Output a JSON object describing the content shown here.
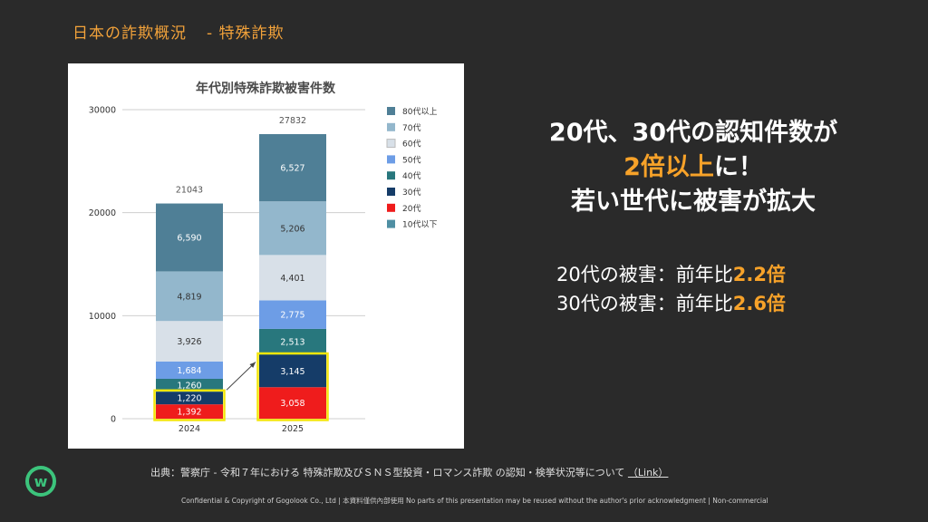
{
  "header": {
    "title": "日本の詐欺概況",
    "subtitle": "- 特殊詐欺"
  },
  "headline": {
    "line1": "20代、30代の認知件数が",
    "line2_strong": "2倍以上",
    "line2_rest": "に！",
    "line3": "若い世代に被害が拡大"
  },
  "stats": [
    {
      "label": "20代の被害：前年比",
      "value": "2.2倍"
    },
    {
      "label": "30代の被害：前年比",
      "value": "2.6倍"
    }
  ],
  "source": {
    "text": "出典：警察庁 - 令和７年における 特殊詐欺及びＳＮＳ型投資・ロマンス詐欺 の認知・検挙状況等について",
    "link": "（Link）"
  },
  "footer": "Confidential & Copyright of Gogolook Co., Ltd | 本資料僅供內部使用 No parts of this presentation may be reused without the author's prior acknowledgment | Non-commercial",
  "logo": {
    "icon": "gogolook-w-logo",
    "color": "#3cc47c"
  },
  "colors": {
    "accent": "#f7a229",
    "highlight": "#f4e60a"
  },
  "chart_data": {
    "type": "bar",
    "stacked": true,
    "title": "年代別特殊詐欺被害件数",
    "categories": [
      "2024",
      "2025"
    ],
    "totals": [
      "21043",
      "27832"
    ],
    "ylim": [
      0,
      30000
    ],
    "yticks": [
      "0",
      "10000",
      "20000",
      "30000"
    ],
    "grid": true,
    "legend_position": "right",
    "series": [
      {
        "name": "10代以下",
        "color": "#4f8fa3",
        "values": [
          0,
          0
        ],
        "labels": [
          "",
          ""
        ]
      },
      {
        "name": "20代",
        "color": "#ef1c1c",
        "values": [
          1392,
          3058
        ],
        "labels": [
          "1,392",
          "3,058"
        ]
      },
      {
        "name": "30代",
        "color": "#153c68",
        "values": [
          1220,
          3145
        ],
        "labels": [
          "1,220",
          "3,145"
        ]
      },
      {
        "name": "40代",
        "color": "#28777d",
        "values": [
          1260,
          2513
        ],
        "labels": [
          "1,260",
          "2,513"
        ]
      },
      {
        "name": "50代",
        "color": "#6d9de6",
        "values": [
          1684,
          2775
        ],
        "labels": [
          "1,684",
          "2,775"
        ]
      },
      {
        "name": "60代",
        "color": "#d8e0e8",
        "values": [
          3926,
          4401
        ],
        "labels": [
          "3,926",
          "4,401"
        ]
      },
      {
        "name": "70代",
        "color": "#93b7cc",
        "values": [
          4819,
          5206
        ],
        "labels": [
          "4,819",
          "5,206"
        ]
      },
      {
        "name": "80代以上",
        "color": "#4f7f96",
        "values": [
          6590,
          6527
        ],
        "labels": [
          "6,590",
          "6,527"
        ]
      }
    ],
    "highlighted_series": [
      "20代",
      "30代"
    ]
  }
}
